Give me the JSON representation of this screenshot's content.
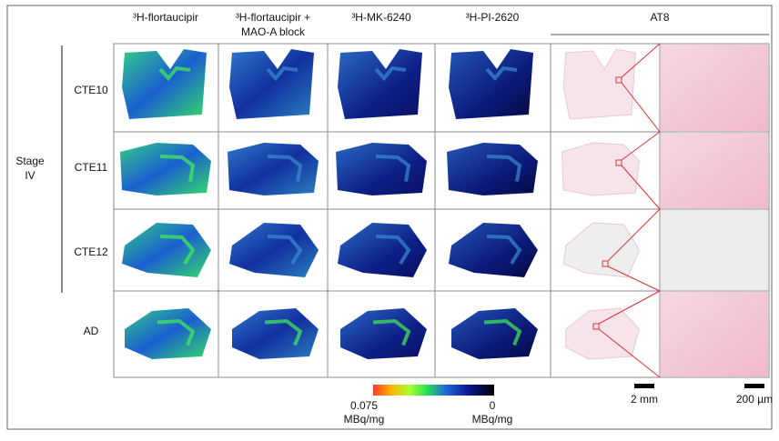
{
  "columns": [
    "³H-flortaucipir",
    "³H-flortaucipir + MAO-A block",
    "³H-MK-6240",
    "³H-PI-2620"
  ],
  "at8_header": "AT8",
  "group_label": "Stage IV",
  "rows": [
    "CTE10",
    "CTE11",
    "CTE12",
    "AD"
  ],
  "colorbar": {
    "max_label": "0.075",
    "min_label": "0",
    "unit": "MBq/mg"
  },
  "scale_bars": [
    "2 mm",
    "200 µm"
  ]
}
